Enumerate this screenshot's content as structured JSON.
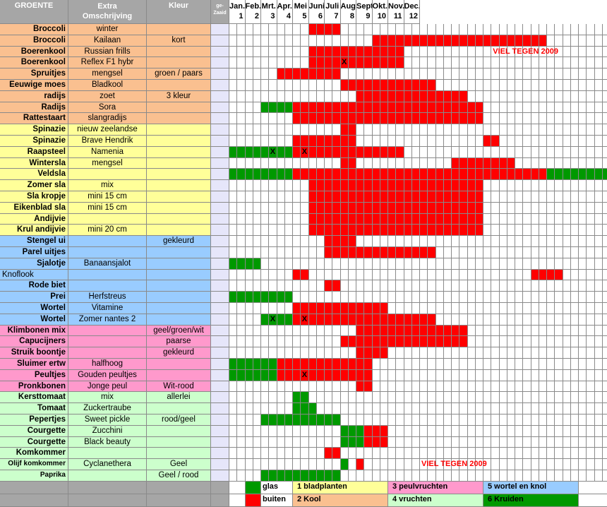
{
  "header": {
    "groente": "GROENTE",
    "extra": "Extra Omschrijving",
    "extra_l1": "Extra",
    "extra_l2": "Omschrijving",
    "kleur": "Kleur",
    "gezaaid_l1": "ge-",
    "gezaaid_l2": "Zaaid"
  },
  "months": [
    {
      "name": "Jan.",
      "num": "1"
    },
    {
      "name": "Feb.",
      "num": "2"
    },
    {
      "name": "Mrt.",
      "num": "3"
    },
    {
      "name": "Apr.",
      "num": "4"
    },
    {
      "name": "Mei",
      "num": "5"
    },
    {
      "name": "Juni",
      "num": "6"
    },
    {
      "name": "Juli",
      "num": "7"
    },
    {
      "name": "Aug.",
      "num": "8"
    },
    {
      "name": "Sept.",
      "num": "9"
    },
    {
      "name": "Okt.",
      "num": "10"
    },
    {
      "name": "Nov.",
      "num": "11"
    },
    {
      "name": "Dec.",
      "num": "12"
    }
  ],
  "colors": {
    "bladplanten": "#ffff99",
    "kool": "#fac090",
    "peulvruchten": "#ff99cc",
    "vruchten": "#ccffcc",
    "wortel": "#99ccff",
    "glas": "#009900",
    "buiten": "#ff0000"
  },
  "rows": [
    {
      "name": "Broccoli",
      "desc": "winter",
      "kleur": "",
      "cat": "kool",
      "marks": {
        "10": "r",
        "11": "r",
        "12": "r",
        "13": "r"
      }
    },
    {
      "name": "Broccoli",
      "desc": "Kailaan",
      "kleur": "kort",
      "cat": "kool",
      "marks": {
        "18": "r",
        "19": "r",
        "20": "r",
        "21": "r",
        "22": "r",
        "23": "r",
        "24": "r",
        "25": "r",
        "26": "r",
        "27": "r",
        "28": "r",
        "29": "r",
        "30": "r",
        "31": "r",
        "32": "r",
        "33": "r",
        "34": "r",
        "35": "r",
        "36": "r",
        "37": "r",
        "38": "r",
        "39": "r"
      }
    },
    {
      "name": "Boerenkool",
      "desc": "Russian frills",
      "kleur": "",
      "cat": "kool",
      "marks": {
        "10": "r",
        "11": "r",
        "12": "r",
        "13": "r",
        "14": "r",
        "15": "r",
        "16": "r",
        "17": "r",
        "18": "r",
        "19": "r",
        "20": "r",
        "21": "r"
      }
    },
    {
      "name": "Boerenkool",
      "desc": "Reflex F1 hybr",
      "kleur": "",
      "cat": "kool",
      "marks": {
        "10": "r",
        "11": "r",
        "12": "r",
        "13": "r",
        "14": "r",
        "15": "r",
        "16": "r",
        "17": "r",
        "18": "r",
        "19": "r",
        "20": "r",
        "21": "r"
      }
    },
    {
      "name": "Spruitjes",
      "desc": "mengsel",
      "kleur": "groen / paars",
      "cat": "kool",
      "marks": {
        "6": "r",
        "7": "r",
        "8": "r",
        "9": "r",
        "10": "r",
        "11": "r",
        "12": "r",
        "13": "r"
      }
    },
    {
      "name": "Eeuwige moes",
      "desc": "Bladkool",
      "kleur": "",
      "cat": "kool",
      "marks": {
        "14": "r",
        "15": "r",
        "16": "r",
        "17": "r",
        "18": "r",
        "19": "r",
        "20": "r",
        "21": "r",
        "22": "r",
        "23": "r",
        "24": "r",
        "25": "r"
      }
    },
    {
      "name": "radijs",
      "desc": "zoet",
      "kleur": "3 kleur",
      "cat": "kool",
      "marks": {
        "16": "r",
        "17": "r",
        "18": "r",
        "19": "r",
        "20": "r",
        "21": "r",
        "22": "r",
        "23": "r",
        "24": "r",
        "25": "r",
        "26": "r",
        "27": "r",
        "28": "r",
        "29": "r"
      }
    },
    {
      "name": "Radijs",
      "desc": "Sora",
      "kleur": "",
      "cat": "kool",
      "marks": {
        "4": "g",
        "5": "g",
        "6": "g",
        "7": "g",
        "8": "r",
        "9": "r",
        "10": "r",
        "11": "r",
        "12": "r",
        "13": "r",
        "14": "r",
        "15": "r",
        "16": "r",
        "17": "r",
        "18": "r",
        "19": "r",
        "20": "r",
        "21": "r",
        "22": "r",
        "23": "r",
        "24": "r",
        "25": "r",
        "26": "r",
        "27": "r",
        "28": "r",
        "29": "r",
        "30": "r",
        "31": "r"
      }
    },
    {
      "name": "Rattestaart",
      "desc": "slangradijs",
      "kleur": "",
      "cat": "kool",
      "marks": {
        "8": "r",
        "9": "r",
        "10": "r",
        "11": "r",
        "12": "r",
        "13": "r",
        "14": "r",
        "15": "r",
        "16": "r",
        "17": "r",
        "18": "r",
        "19": "r",
        "20": "r",
        "21": "r",
        "22": "r",
        "23": "r",
        "24": "r",
        "25": "r",
        "26": "r",
        "27": "r",
        "28": "r",
        "29": "r",
        "30": "r",
        "31": "r"
      }
    },
    {
      "name": "Spinazie",
      "desc": "nieuw zeelandse",
      "kleur": "",
      "cat": "bladplanten",
      "marks": {
        "14": "r",
        "15": "r"
      }
    },
    {
      "name": "Spinazie",
      "desc": "Brave Hendrik",
      "kleur": "",
      "cat": "bladplanten",
      "marks": {
        "8": "r",
        "9": "r",
        "10": "r",
        "11": "r",
        "12": "r",
        "13": "r",
        "14": "r",
        "15": "r",
        "32": "r",
        "33": "r"
      }
    },
    {
      "name": "Raapsteel",
      "desc": "Namenia",
      "kleur": "",
      "cat": "bladplanten",
      "marks": {
        "0": "g",
        "1": "g",
        "2": "g",
        "3": "g",
        "4": "g",
        "5": "g",
        "6": "g",
        "7": "g",
        "8": "r",
        "9": "r",
        "10": "r",
        "11": "r",
        "12": "r",
        "13": "r",
        "14": "r",
        "15": "r",
        "16": "r",
        "17": "r",
        "18": "r",
        "19": "r",
        "20": "r",
        "21": "r"
      }
    },
    {
      "name": "Wintersla",
      "desc": "mengsel",
      "kleur": "",
      "cat": "bladplanten",
      "marks": {
        "14": "r",
        "15": "r",
        "28": "r",
        "29": "r",
        "30": "r",
        "31": "r",
        "32": "r",
        "33": "r",
        "34": "r",
        "35": "r"
      }
    },
    {
      "name": "Veldsla",
      "desc": "",
      "kleur": "",
      "cat": "bladplanten",
      "marks": {
        "0": "g",
        "1": "g",
        "2": "g",
        "3": "g",
        "4": "g",
        "5": "g",
        "6": "g",
        "7": "g",
        "8": "r",
        "9": "r",
        "10": "r",
        "11": "r",
        "12": "r",
        "13": "r",
        "14": "r",
        "15": "r",
        "16": "r",
        "17": "r",
        "18": "r",
        "19": "r",
        "20": "r",
        "21": "r",
        "22": "r",
        "23": "r",
        "24": "r",
        "25": "r",
        "26": "r",
        "27": "r",
        "28": "r",
        "29": "r",
        "30": "r",
        "31": "r",
        "32": "r",
        "33": "r",
        "34": "r",
        "35": "r",
        "36": "r",
        "37": "r",
        "38": "r",
        "39": "r",
        "40": "g",
        "41": "g",
        "42": "g",
        "43": "g",
        "44": "g",
        "45": "g",
        "46": "g",
        "47": "g"
      }
    },
    {
      "name": "Zomer sla",
      "desc": "mix",
      "kleur": "",
      "cat": "bladplanten",
      "marks": {
        "10": "r",
        "11": "r",
        "12": "r",
        "13": "r",
        "14": "r",
        "15": "r",
        "16": "r",
        "17": "r",
        "18": "r",
        "19": "r",
        "20": "r",
        "21": "r",
        "22": "r",
        "23": "r",
        "24": "r",
        "25": "r",
        "26": "r",
        "27": "r",
        "28": "r",
        "29": "r",
        "30": "r",
        "31": "r"
      }
    },
    {
      "name": "Sla kropje",
      "desc": "mini 15 cm",
      "kleur": "",
      "cat": "bladplanten",
      "marks": {
        "10": "r",
        "11": "r",
        "12": "r",
        "13": "r",
        "14": "r",
        "15": "r",
        "16": "r",
        "17": "r",
        "18": "r",
        "19": "r",
        "20": "r",
        "21": "r",
        "22": "r",
        "23": "r",
        "24": "r",
        "25": "r",
        "26": "r",
        "27": "r",
        "28": "r",
        "29": "r",
        "30": "r",
        "31": "r"
      }
    },
    {
      "name": "Eikenblad sla",
      "desc": "mini 15 cm",
      "kleur": "",
      "cat": "bladplanten",
      "marks": {
        "10": "r",
        "11": "r",
        "12": "r",
        "13": "r",
        "14": "r",
        "15": "r",
        "16": "r",
        "17": "r",
        "18": "r",
        "19": "r",
        "20": "r",
        "21": "r",
        "22": "r",
        "23": "r",
        "24": "r",
        "25": "r",
        "26": "r",
        "27": "r",
        "28": "r",
        "29": "r",
        "30": "r",
        "31": "r"
      }
    },
    {
      "name": "Andijvie",
      "desc": "",
      "kleur": "",
      "cat": "bladplanten",
      "marks": {
        "10": "r",
        "11": "r",
        "12": "r",
        "13": "r",
        "14": "r",
        "15": "r",
        "16": "r",
        "17": "r",
        "18": "r",
        "19": "r",
        "20": "r",
        "21": "r",
        "22": "r",
        "23": "r",
        "24": "r",
        "25": "r",
        "26": "r",
        "27": "r",
        "28": "r",
        "29": "r",
        "30": "r",
        "31": "r"
      }
    },
    {
      "name": "Krul andijvie",
      "desc": "mini 20 cm",
      "kleur": "",
      "cat": "bladplanten",
      "marks": {
        "10": "r",
        "11": "r",
        "12": "r",
        "13": "r",
        "14": "r",
        "15": "r",
        "16": "r",
        "17": "r",
        "18": "r",
        "19": "r",
        "20": "r",
        "21": "r",
        "22": "r",
        "23": "r",
        "24": "r",
        "25": "r",
        "26": "r",
        "27": "r",
        "28": "r",
        "29": "r",
        "30": "r",
        "31": "r"
      }
    },
    {
      "name": "Stengel ui",
      "desc": "",
      "kleur": "gekleurd",
      "cat": "wortel",
      "marks": {
        "12": "r",
        "13": "r",
        "14": "r",
        "15": "r"
      }
    },
    {
      "name": "Parel uitjes",
      "desc": "",
      "kleur": "",
      "cat": "wortel",
      "marks": {
        "12": "r",
        "13": "r",
        "14": "r",
        "15": "r",
        "16": "r",
        "17": "r",
        "18": "r",
        "19": "r",
        "20": "r",
        "21": "r",
        "22": "r",
        "23": "r",
        "24": "r",
        "25": "r"
      }
    },
    {
      "name": "Sjalotje",
      "desc": "Banaansjalot",
      "kleur": "",
      "cat": "wortel",
      "marks": {
        "0": "g",
        "1": "g",
        "2": "g",
        "3": "g"
      }
    },
    {
      "name": "Knoflook",
      "desc": "",
      "kleur": "",
      "cat": "wortel",
      "nameLeft": true,
      "marks": {
        "8": "r",
        "9": "r",
        "38": "r",
        "39": "r",
        "40": "r",
        "41": "r"
      }
    },
    {
      "name": "Rode biet",
      "desc": "",
      "kleur": "",
      "cat": "wortel",
      "marks": {
        "12": "r",
        "13": "r"
      }
    },
    {
      "name": "Prei",
      "desc": "Herfstreus",
      "kleur": "",
      "cat": "wortel",
      "marks": {
        "0": "g",
        "1": "g",
        "2": "g",
        "3": "g",
        "4": "g",
        "5": "g",
        "6": "g",
        "7": "g"
      }
    },
    {
      "name": "Wortel",
      "desc": "Vitamine",
      "kleur": "",
      "cat": "wortel",
      "marks": {
        "8": "r",
        "9": "r",
        "10": "r",
        "11": "r",
        "12": "r",
        "13": "r",
        "14": "r",
        "15": "r",
        "16": "r",
        "17": "r",
        "18": "r",
        "19": "r"
      }
    },
    {
      "name": "Wortel",
      "desc": "Zomer nantes 2",
      "kleur": "",
      "cat": "wortel",
      "marks": {
        "4": "g",
        "5": "g",
        "6": "g",
        "7": "g",
        "8": "r",
        "9": "r",
        "10": "r",
        "11": "r",
        "12": "r",
        "13": "r",
        "14": "r",
        "15": "r",
        "16": "r",
        "17": "r",
        "18": "r",
        "19": "r",
        "20": "r",
        "21": "r",
        "22": "r",
        "23": "r",
        "24": "r",
        "25": "r"
      }
    },
    {
      "name": "Klimbonen mix",
      "desc": "",
      "kleur": "geel/groen/wit",
      "cat": "peulvruchten",
      "marks": {
        "16": "r",
        "17": "r",
        "18": "r",
        "19": "r",
        "20": "r",
        "21": "r",
        "22": "r",
        "23": "r",
        "24": "r",
        "25": "r",
        "26": "r",
        "27": "r",
        "28": "r",
        "29": "r"
      }
    },
    {
      "name": "Capucijners",
      "desc": "",
      "kleur": "paarse",
      "cat": "peulvruchten",
      "marks": {
        "14": "r",
        "15": "r",
        "16": "r",
        "17": "r",
        "18": "r",
        "19": "r",
        "20": "r",
        "21": "r",
        "22": "r",
        "23": "r",
        "24": "r",
        "25": "r",
        "26": "r",
        "27": "r",
        "28": "r",
        "29": "r"
      }
    },
    {
      "name": "Struik boontje",
      "desc": "",
      "kleur": "gekleurd",
      "cat": "peulvruchten",
      "marks": {
        "16": "r",
        "17": "r",
        "18": "r",
        "19": "r"
      }
    },
    {
      "name": "Sluimer ertw",
      "desc": "halfhoog",
      "kleur": "",
      "cat": "peulvruchten",
      "marks": {
        "0": "g",
        "1": "g",
        "2": "g",
        "3": "g",
        "4": "g",
        "5": "g",
        "6": "r",
        "7": "r",
        "8": "r",
        "9": "r",
        "10": "r",
        "11": "r",
        "12": "r",
        "13": "r",
        "14": "r",
        "15": "r",
        "16": "r",
        "17": "r"
      }
    },
    {
      "name": "Peultjes",
      "desc": "Gouden peultjes",
      "kleur": "",
      "cat": "peulvruchten",
      "marks": {
        "0": "g",
        "1": "g",
        "2": "g",
        "3": "g",
        "4": "g",
        "5": "g",
        "6": "r",
        "7": "r",
        "8": "r",
        "9": "r",
        "10": "r",
        "11": "r",
        "12": "r",
        "13": "r",
        "14": "r",
        "15": "r",
        "16": "r",
        "17": "r"
      }
    },
    {
      "name": "Pronkbonen",
      "desc": "Jonge peul",
      "kleur": "Wit-rood",
      "cat": "peulvruchten",
      "marks": {
        "16": "r",
        "17": "r"
      }
    },
    {
      "name": "Kersttomaat",
      "desc": "mix",
      "kleur": "allerlei",
      "cat": "vruchten",
      "marks": {
        "8": "g",
        "9": "g"
      }
    },
    {
      "name": "Tomaat",
      "desc": "Zuckertraube",
      "kleur": "",
      "cat": "vruchten",
      "marks": {
        "8": "g",
        "9": "g",
        "10": "g"
      }
    },
    {
      "name": "Pepertjes",
      "desc": "Sweet pickle",
      "kleur": "rood/geel",
      "cat": "vruchten",
      "marks": {
        "4": "g",
        "5": "g",
        "6": "g",
        "7": "g",
        "8": "g",
        "9": "g",
        "10": "g",
        "11": "g",
        "12": "g",
        "13": "g"
      }
    },
    {
      "name": "Courgette",
      "desc": "Zucchini",
      "kleur": "",
      "cat": "vruchten",
      "marks": {
        "14": "g",
        "15": "g",
        "16": "g",
        "17": "r",
        "18": "r",
        "19": "r"
      }
    },
    {
      "name": "Courgette",
      "desc": "Black beauty",
      "kleur": "",
      "cat": "vruchten",
      "marks": {
        "14": "g",
        "15": "g",
        "16": "g",
        "17": "r",
        "18": "r",
        "19": "r"
      }
    },
    {
      "name": "Komkommer",
      "desc": "",
      "kleur": "",
      "cat": "vruchten",
      "marks": {
        "12": "r",
        "13": "r"
      }
    },
    {
      "name": "Olijf komkommer",
      "desc": "Cyclanethera",
      "kleur": "Geel",
      "cat": "vruchten",
      "small": true,
      "marks": {
        "14": "g",
        "16": "r"
      }
    },
    {
      "name": "Paprika",
      "desc": "",
      "kleur": "Geel / rood",
      "cat": "vruchten",
      "small": true,
      "marks": {
        "4": "g",
        "5": "g",
        "6": "g",
        "7": "g",
        "8": "g",
        "9": "g",
        "10": "g",
        "11": "g",
        "12": "g",
        "13": "g"
      }
    }
  ],
  "x_marks": [
    {
      "row": 3,
      "col": 14
    },
    {
      "row": 11,
      "col": 5
    },
    {
      "row": 11,
      "col": 9
    },
    {
      "row": 26,
      "col": 5
    },
    {
      "row": 26,
      "col": 9
    },
    {
      "row": 31,
      "col": 9
    }
  ],
  "x_symbol": "X",
  "notes": [
    {
      "text": "VIEL TEGEN 2009",
      "row": 2,
      "col": 33
    },
    {
      "text": "VIEL TEGEN 2009",
      "row": 39,
      "col": 24
    }
  ],
  "legend": {
    "glas": "glas",
    "buiten": "buiten",
    "c1": "1 bladplanten",
    "c2": "2 Kool",
    "c3": "3 peulvruchten",
    "c4": "4 vruchten",
    "c5": "5 wortel en knol",
    "c6": "6 Kruiden"
  }
}
